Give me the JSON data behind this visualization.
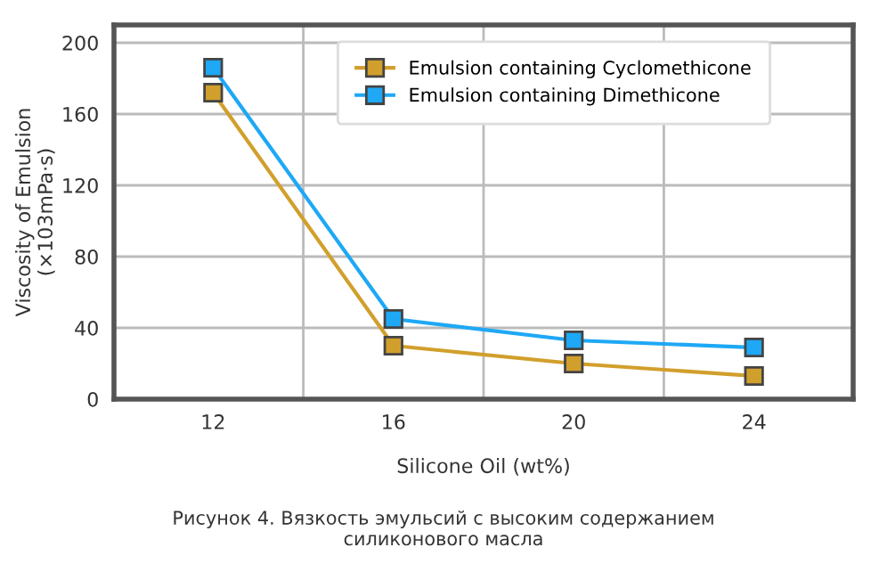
{
  "chart_data": {
    "type": "line",
    "xlabel": "Silicone Oil (wt%)",
    "ylabel": "Viscosity of Emulsion\n(×103mPa·s)",
    "categories": [
      "12",
      "16",
      "20",
      "24"
    ],
    "series": [
      {
        "name": "Emulsion containing Cyclomethicone",
        "color": "#d19f2c",
        "values": [
          172,
          30,
          20,
          13
        ]
      },
      {
        "name": "Emulsion containing Dimethicone",
        "color": "#1ea8f5",
        "values": [
          186,
          45,
          33,
          29
        ]
      }
    ],
    "ylim": [
      0,
      210
    ],
    "yticks": [
      0,
      40,
      80,
      120,
      160,
      200
    ],
    "grid": true,
    "legend": "top right",
    "marker": "square",
    "line_style": "solid",
    "annotations": [
      "Рисунок 4. Вязкость эмульсий с высоким содержанием\nсиликонового масла"
    ]
  }
}
